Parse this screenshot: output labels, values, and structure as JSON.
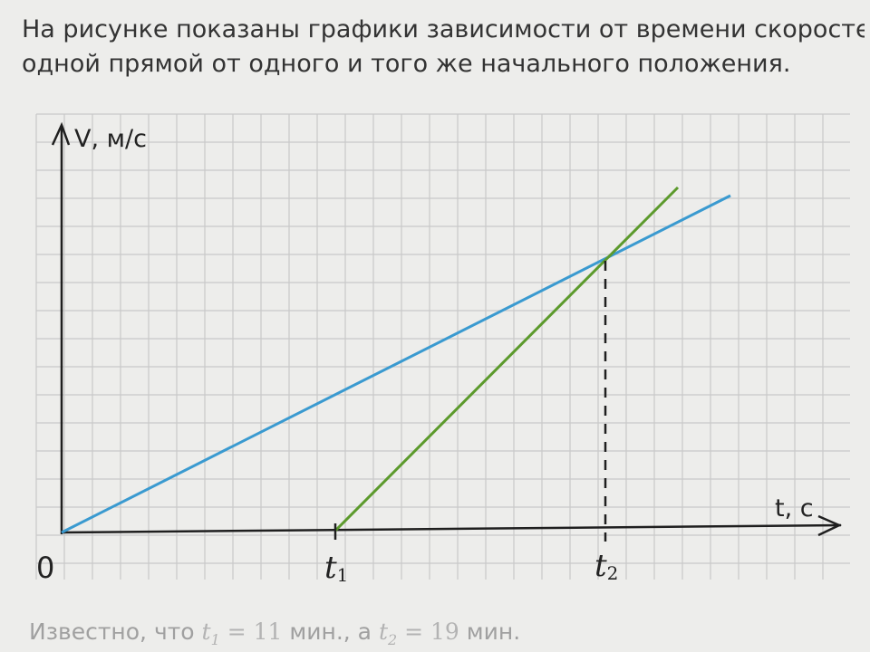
{
  "problem": {
    "line1": "На рисунке показаны графики зависимости от времени скоростей двух",
    "line2": "одной прямой от одного и того же начального положения."
  },
  "axes": {
    "y_label": "V, м/с",
    "x_label": "t, с",
    "origin_label": "0",
    "tick_t1_base": "t",
    "tick_t1_sub": "1",
    "tick_t2_base": "t",
    "tick_t2_sub": "2"
  },
  "footer": {
    "prefix": "Известно, что ",
    "t1_var": "t",
    "t1_sub": "1",
    "eq1": " = ",
    "t1_value": "11",
    "mid": " мин., а ",
    "t2_var": "t",
    "t2_sub": "2",
    "eq2": " = ",
    "t2_value": "19",
    "suffix": " мин."
  },
  "colors": {
    "grid": "#c9c9c9",
    "axis": "#1f1f1f",
    "line_blue": "#3a9ad0",
    "line_green": "#5c9a2c",
    "dashed": "#1f1f1f"
  }
}
